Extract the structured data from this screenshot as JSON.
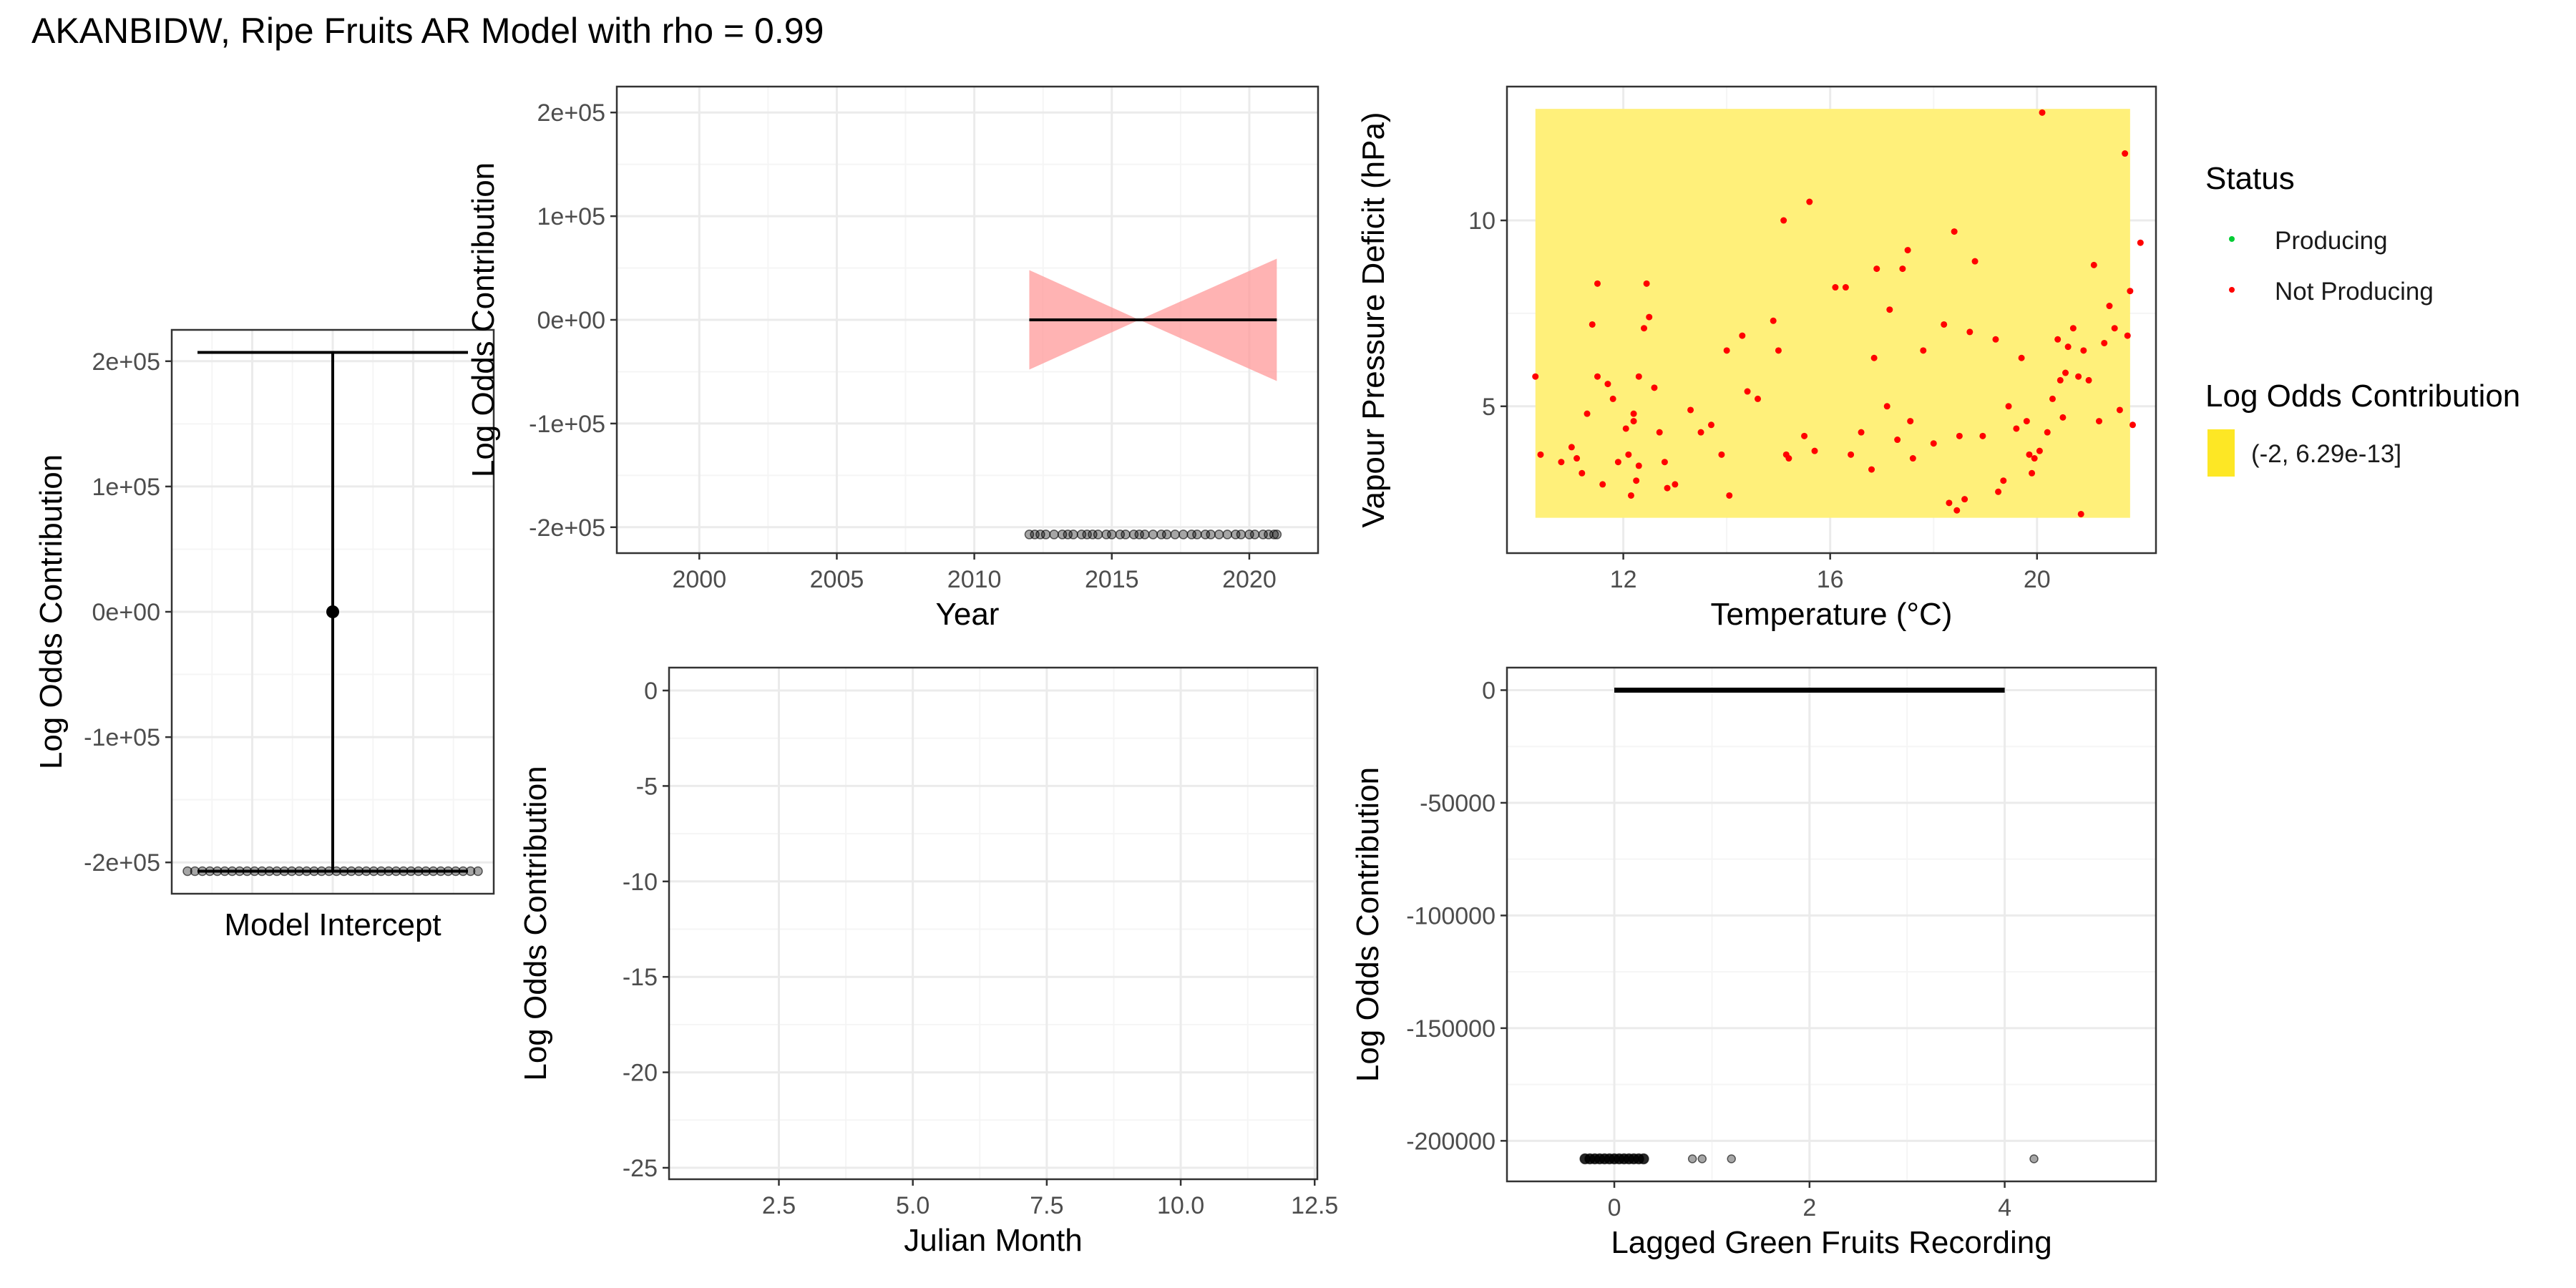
{
  "title": "AKANBIDW, Ripe Fruits AR Model with rho = 0.99",
  "colors": {
    "panel_border": "#333333",
    "grid_major": "#ebebeb",
    "grid_minor": "#f5f5f5",
    "points": "#000000",
    "ribbon": "#ff9999",
    "vpd_fill": "#fff07a",
    "producing": "#00cc33",
    "not_producing": "#ff0000",
    "legend_key_fill": "#fde725"
  },
  "chart_data": [
    {
      "id": "intercept",
      "type": "errorbar",
      "xlabel": "Model Intercept",
      "ylabel": "Log Odds Contribution",
      "ylim": [
        -225000,
        225000
      ],
      "yticks": [
        -200000,
        -100000,
        0,
        100000,
        200000
      ],
      "ytick_labels": [
        "-2e+05",
        "-1e+05",
        "0e+00",
        "1e+05",
        "2e+05"
      ],
      "estimate": 0,
      "upper": 207000,
      "lower": -207000,
      "rug_y": -207000,
      "rug_count": 40
    },
    {
      "id": "year",
      "type": "line",
      "xlabel": "Year",
      "ylabel": "Log Odds Contribution",
      "xlim": [
        1997,
        2022.5
      ],
      "ylim": [
        -225000,
        225000
      ],
      "xticks": [
        2000,
        2005,
        2010,
        2015,
        2020
      ],
      "xtick_labels": [
        "2000",
        "2005",
        "2010",
        "2015",
        "2020"
      ],
      "yticks": [
        -200000,
        -100000,
        0,
        100000,
        200000
      ],
      "ytick_labels": [
        "-2e+05",
        "-1e+05",
        "0e+00",
        "1e+05",
        "2e+05"
      ],
      "line": {
        "x": [
          2012,
          2021
        ],
        "y": [
          0,
          0
        ]
      },
      "ribbon": {
        "x": [
          2012,
          2016,
          2021
        ],
        "upper": [
          48000,
          0,
          59000
        ],
        "lower": [
          -48000,
          0,
          -59000
        ]
      },
      "rug_y": -207000,
      "rug_x": [
        2012,
        2012.2,
        2012.4,
        2012.6,
        2012.9,
        2013.2,
        2013.4,
        2013.6,
        2013.9,
        2014.1,
        2014.3,
        2014.5,
        2014.8,
        2015,
        2015.3,
        2015.5,
        2015.8,
        2016,
        2016.2,
        2016.5,
        2016.8,
        2017,
        2017.3,
        2017.6,
        2017.9,
        2018.1,
        2018.4,
        2018.6,
        2018.9,
        2019.2,
        2019.5,
        2019.7,
        2020,
        2020.2,
        2020.5,
        2020.7,
        2020.9,
        2021
      ]
    },
    {
      "id": "vpd",
      "type": "scatter",
      "xlabel": "Temperature (°C)",
      "ylabel": "Vapour Pressure Deficit (hPa)",
      "xlim": [
        9.75,
        22.3
      ],
      "ylim": [
        1.05,
        13.6
      ],
      "xticks": [
        12,
        16,
        20
      ],
      "xtick_labels": [
        "12",
        "16",
        "20"
      ],
      "yticks": [
        5,
        10
      ],
      "ytick_labels": [
        "5",
        "10"
      ],
      "tile": {
        "xmin": 10.3,
        "xmax": 21.8,
        "ymin": 2,
        "ymax": 13
      },
      "points": [
        [
          10.3,
          5.8
        ],
        [
          10.4,
          3.7
        ],
        [
          10.8,
          3.5
        ],
        [
          11,
          3.9
        ],
        [
          11.1,
          3.6
        ],
        [
          11.2,
          3.2
        ],
        [
          11.3,
          4.8
        ],
        [
          11.4,
          7.2
        ],
        [
          11.5,
          5.8
        ],
        [
          11.5,
          8.3
        ],
        [
          11.6,
          2.9
        ],
        [
          11.7,
          5.6
        ],
        [
          11.8,
          5.2
        ],
        [
          11.9,
          3.5
        ],
        [
          12.05,
          4.4
        ],
        [
          12.1,
          3.7
        ],
        [
          12.15,
          2.6
        ],
        [
          12.2,
          4.6
        ],
        [
          12.2,
          4.8
        ],
        [
          12.25,
          3
        ],
        [
          12.3,
          3.4
        ],
        [
          12.3,
          5.8
        ],
        [
          12.4,
          7.1
        ],
        [
          12.45,
          8.3
        ],
        [
          12.5,
          7.4
        ],
        [
          12.6,
          5.5
        ],
        [
          12.7,
          4.3
        ],
        [
          12.8,
          3.5
        ],
        [
          12.85,
          2.8
        ],
        [
          13,
          2.9
        ],
        [
          13.3,
          4.9
        ],
        [
          13.5,
          4.3
        ],
        [
          13.7,
          4.5
        ],
        [
          13.9,
          3.7
        ],
        [
          14,
          6.5
        ],
        [
          14.05,
          2.6
        ],
        [
          14.3,
          6.9
        ],
        [
          14.4,
          5.4
        ],
        [
          14.6,
          5.2
        ],
        [
          14.9,
          7.3
        ],
        [
          15,
          6.5
        ],
        [
          15.1,
          10
        ],
        [
          15.15,
          3.7
        ],
        [
          15.2,
          3.6
        ],
        [
          15.5,
          4.2
        ],
        [
          15.6,
          10.5
        ],
        [
          15.7,
          3.8
        ],
        [
          16.1,
          8.2
        ],
        [
          16.3,
          8.2
        ],
        [
          16.4,
          3.7
        ],
        [
          16.6,
          4.3
        ],
        [
          16.8,
          3.3
        ],
        [
          16.85,
          6.3
        ],
        [
          16.9,
          8.7
        ],
        [
          17.1,
          5
        ],
        [
          17.15,
          7.6
        ],
        [
          17.3,
          4.1
        ],
        [
          17.4,
          8.7
        ],
        [
          17.5,
          9.2
        ],
        [
          17.55,
          4.6
        ],
        [
          17.6,
          3.6
        ],
        [
          17.8,
          6.5
        ],
        [
          18,
          4
        ],
        [
          18.2,
          7.2
        ],
        [
          18.3,
          2.4
        ],
        [
          18.4,
          9.7
        ],
        [
          18.45,
          2.2
        ],
        [
          18.5,
          4.2
        ],
        [
          18.6,
          2.5
        ],
        [
          18.7,
          7
        ],
        [
          18.8,
          8.9
        ],
        [
          18.95,
          4.2
        ],
        [
          19.2,
          6.8
        ],
        [
          19.25,
          2.7
        ],
        [
          19.35,
          3
        ],
        [
          19.45,
          5
        ],
        [
          19.6,
          4.4
        ],
        [
          19.7,
          6.3
        ],
        [
          19.8,
          4.6
        ],
        [
          19.85,
          3.7
        ],
        [
          19.9,
          3.2
        ],
        [
          19.95,
          3.6
        ],
        [
          20.05,
          3.8
        ],
        [
          20.1,
          12.9
        ],
        [
          20.2,
          4.3
        ],
        [
          20.3,
          5.2
        ],
        [
          20.4,
          6.8
        ],
        [
          20.45,
          5.7
        ],
        [
          20.5,
          4.7
        ],
        [
          20.55,
          5.9
        ],
        [
          20.6,
          6.6
        ],
        [
          20.7,
          7.1
        ],
        [
          20.8,
          5.8
        ],
        [
          20.85,
          2.1
        ],
        [
          20.9,
          6.5
        ],
        [
          21.0,
          5.7
        ],
        [
          21.1,
          8.8
        ],
        [
          21.2,
          4.6
        ],
        [
          21.3,
          6.7
        ],
        [
          21.4,
          7.7
        ],
        [
          21.5,
          7.1
        ],
        [
          21.6,
          4.9
        ],
        [
          21.7,
          11.8
        ],
        [
          21.75,
          6.9
        ],
        [
          21.8,
          8.1
        ],
        [
          21.85,
          4.5
        ],
        [
          22.0,
          9.4
        ]
      ]
    },
    {
      "id": "month",
      "type": "line",
      "xlabel": "Julian Month",
      "ylabel": "Log Odds Contribution",
      "xlim": [
        0.45,
        12.55
      ],
      "ylim": [
        -25.6,
        1.2
      ],
      "xticks": [
        2.5,
        5,
        7.5,
        10,
        12.5
      ],
      "xtick_labels": [
        "2.5",
        "5.0",
        "7.5",
        "10.0",
        "12.5"
      ],
      "yticks": [
        0,
        -5,
        -10,
        -15,
        -20,
        -25
      ],
      "ytick_labels": [
        "0",
        "-5",
        "-10",
        "-15",
        "-20",
        "-25"
      ]
    },
    {
      "id": "lagged",
      "type": "line",
      "xlabel": "Lagged Green Fruits Recording",
      "ylabel": "Log Odds Contribution",
      "xlim": [
        -1.1,
        5.55
      ],
      "ylim": [
        -218000,
        10000
      ],
      "xticks": [
        0,
        2,
        4
      ],
      "xtick_labels": [
        "0",
        "2",
        "4"
      ],
      "yticks": [
        0,
        -50000,
        -100000,
        -150000,
        -200000
      ],
      "ytick_labels": [
        "0",
        "-50000",
        "-100000",
        "-150000",
        "-200000"
      ],
      "line": {
        "x": [
          0,
          4
        ],
        "y": [
          0,
          0
        ]
      },
      "rug_y": -208000,
      "rug_x": [
        -0.3,
        -0.25,
        -0.2,
        -0.15,
        -0.1,
        -0.05,
        0,
        0.05,
        0.1,
        0.15,
        0.2,
        0.25,
        0.3,
        0.8,
        0.9,
        1.2,
        4.3
      ]
    }
  ],
  "legend": {
    "status_title": "Status",
    "status_items": [
      {
        "label": "Producing",
        "color": "#00cc33"
      },
      {
        "label": "Not Producing",
        "color": "#ff0000"
      }
    ],
    "fill_title": "Log Odds Contribution",
    "fill_items": [
      {
        "label": "(-2, 6.29e-13]",
        "color": "#fde725"
      }
    ]
  }
}
